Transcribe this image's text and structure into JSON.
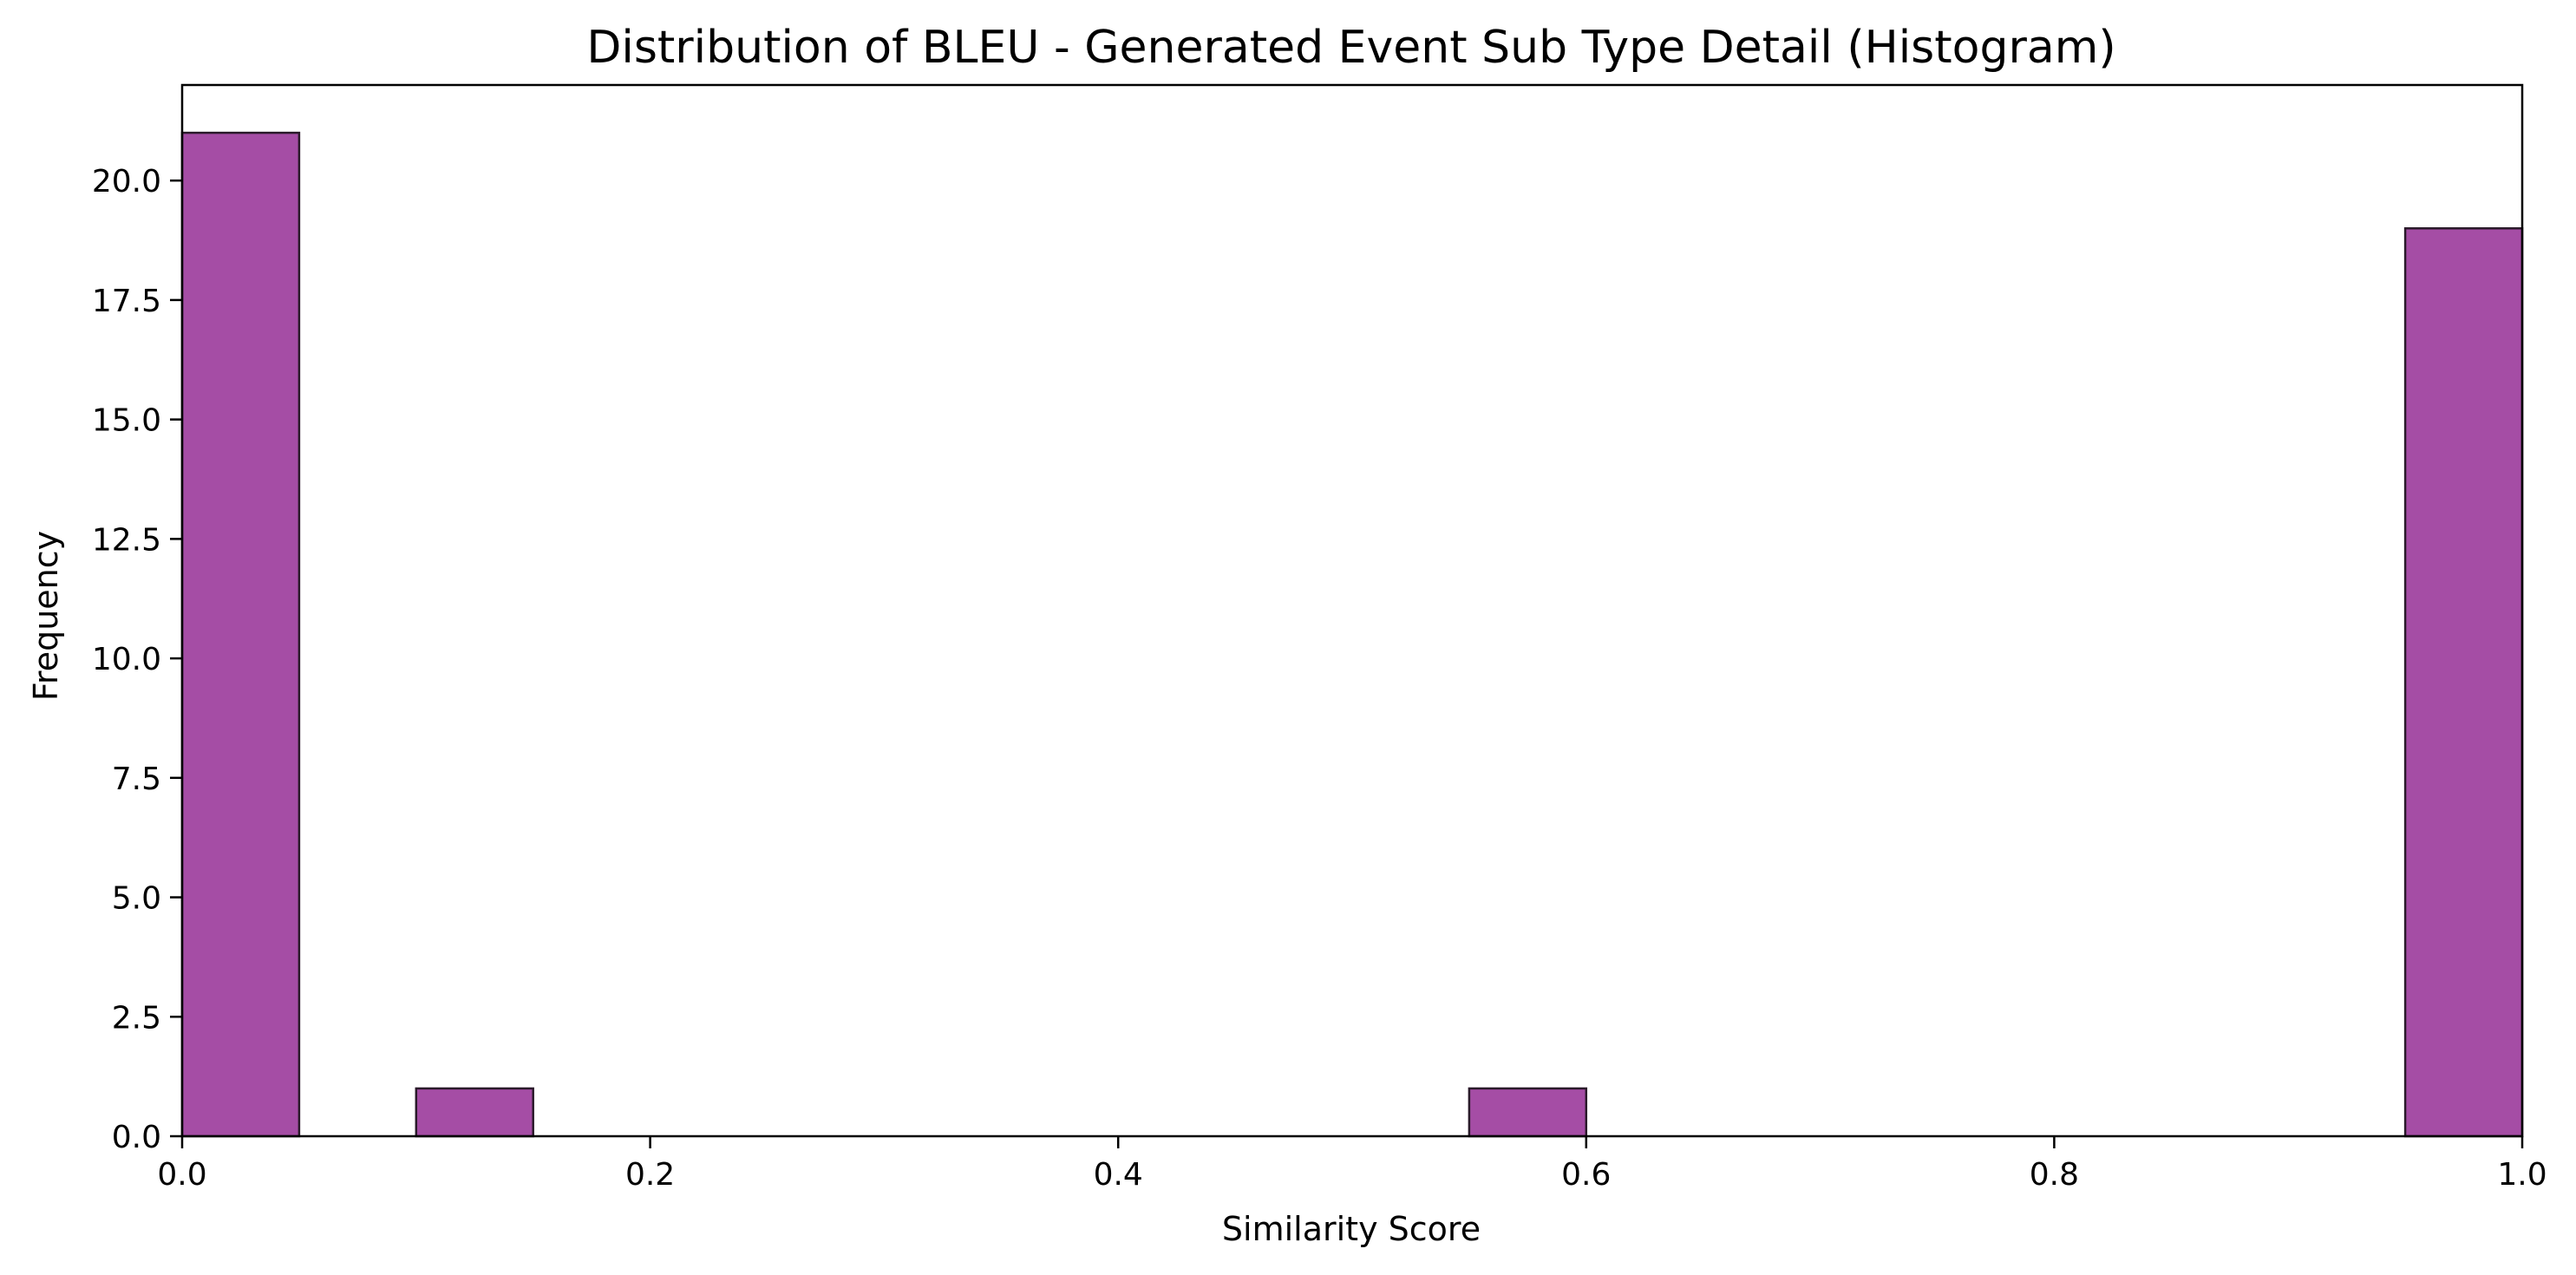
{
  "chart_data": {
    "type": "bar",
    "title": "Distribution of BLEU - Generated Event Sub Type Detail (Histogram)",
    "xlabel": "Similarity Score",
    "ylabel": "Frequency",
    "xlim": [
      0.0,
      1.0
    ],
    "ylim": [
      0.0,
      22.0
    ],
    "x_ticks": [
      "0.0",
      "0.2",
      "0.4",
      "0.6",
      "0.8",
      "1.0"
    ],
    "y_ticks": [
      "0.0",
      "2.5",
      "5.0",
      "7.5",
      "10.0",
      "12.5",
      "15.0",
      "17.5",
      "20.0"
    ],
    "bins": [
      {
        "start": 0.0,
        "end": 0.05,
        "count": 21
      },
      {
        "start": 0.1,
        "end": 0.15,
        "count": 1
      },
      {
        "start": 0.55,
        "end": 0.6,
        "count": 1
      },
      {
        "start": 0.95,
        "end": 1.0,
        "count": 19
      }
    ],
    "bar_color": "#9b3a9b",
    "edge_color": "#2a1a2a",
    "grid": false,
    "legend": false
  }
}
